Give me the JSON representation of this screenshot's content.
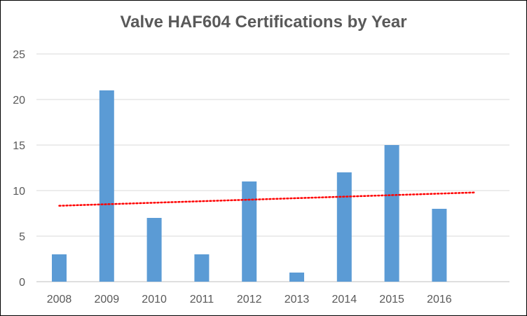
{
  "chart_data": {
    "type": "bar",
    "title": "Valve HAF604 Certifications by Year",
    "categories": [
      "2008",
      "2009",
      "2010",
      "2011",
      "2012",
      "2013",
      "2014",
      "2015",
      "2016"
    ],
    "values": [
      3,
      21,
      7,
      3,
      11,
      1,
      12,
      15,
      8
    ],
    "ylim": [
      0,
      25
    ],
    "yticks": [
      0,
      5,
      10,
      15,
      20,
      25
    ],
    "trendline": {
      "type": "linear",
      "style": "dotted",
      "color": "#ff0000"
    },
    "bar_color": "#5b9bd5",
    "grid": true,
    "legend": "none"
  }
}
